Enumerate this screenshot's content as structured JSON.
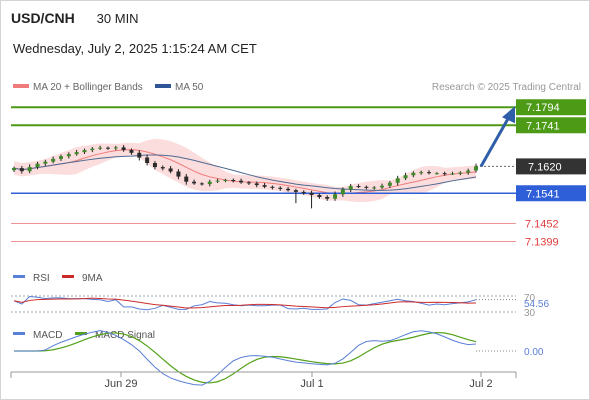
{
  "header": {
    "symbol": "USD/CNH",
    "timeframe": "30 MIN",
    "datetime": "Wednesday, July 2, 2025 1:15:24 AM CET"
  },
  "legend": {
    "ma20_bb": "MA 20 + Bollinger Bands",
    "ma50": "MA 50",
    "credit": "Research © 2025 Trading Central"
  },
  "rsi_legend": {
    "rsi": "RSI",
    "ma": "9MA"
  },
  "macd_legend": {
    "macd": "MACD",
    "signal": "MACD Signal"
  },
  "colors": {
    "bullish": "#3c8a28",
    "resistance": "#4c9a16",
    "support": "#2f5fd8",
    "minor": "#e03c3c",
    "current": "#333333",
    "bollinger": "#fbd2d2",
    "ma20": "#f07b7b",
    "ma50": "#4e6a93",
    "rsi": "#5a7fd6",
    "rsi_ma": "#cc2a2a",
    "macd": "#5a7fd6",
    "macd_signal": "#52a118",
    "arrow": "#2e5ea8"
  },
  "chart_data": [
    {
      "type": "candlestick",
      "title": "USD/CNH 30 MIN",
      "x_tick_labels": [
        "Jun 29",
        "Jul 1",
        "Jul 2"
      ],
      "ylim": [
        7.133,
        7.183
      ],
      "closes": [
        7.1615,
        7.1606,
        7.1618,
        7.1628,
        7.1634,
        7.1642,
        7.165,
        7.1656,
        7.1662,
        7.1668,
        7.1672,
        7.1675,
        7.1673,
        7.1676,
        7.1668,
        7.166,
        7.1646,
        7.163,
        7.1618,
        7.1614,
        7.1605,
        7.159,
        7.1575,
        7.157,
        7.1568,
        7.1575,
        7.1578,
        7.158,
        7.1578,
        7.1573,
        7.157,
        7.1565,
        7.156,
        7.1557,
        7.1554,
        7.155,
        7.1545,
        7.1542,
        7.1536,
        7.153,
        7.1525,
        7.1538,
        7.1552,
        7.1562,
        7.156,
        7.1557,
        7.1558,
        7.1563,
        7.1572,
        7.1585,
        7.1594,
        7.1601,
        7.1603,
        7.16,
        7.16,
        7.1598,
        7.1599,
        7.1602,
        7.1608,
        7.162
      ],
      "levels": [
        {
          "label": "7.1794",
          "value": 7.1794,
          "kind": "resistance"
        },
        {
          "label": "7.1741",
          "value": 7.1741,
          "kind": "resistance"
        },
        {
          "label": "7.1620",
          "value": 7.162,
          "kind": "current"
        },
        {
          "label": "7.1541",
          "value": 7.1541,
          "kind": "support"
        },
        {
          "label": "7.1452",
          "value": 7.1452,
          "kind": "minor"
        },
        {
          "label": "7.1399",
          "value": 7.1399,
          "kind": "minor"
        }
      ]
    },
    {
      "type": "line",
      "title": "RSI",
      "tick_labels": [
        "70",
        "30"
      ],
      "current_label": "54.56",
      "ylim": [
        20,
        80
      ]
    },
    {
      "type": "line",
      "title": "MACD",
      "zero_label": "0.00"
    }
  ]
}
